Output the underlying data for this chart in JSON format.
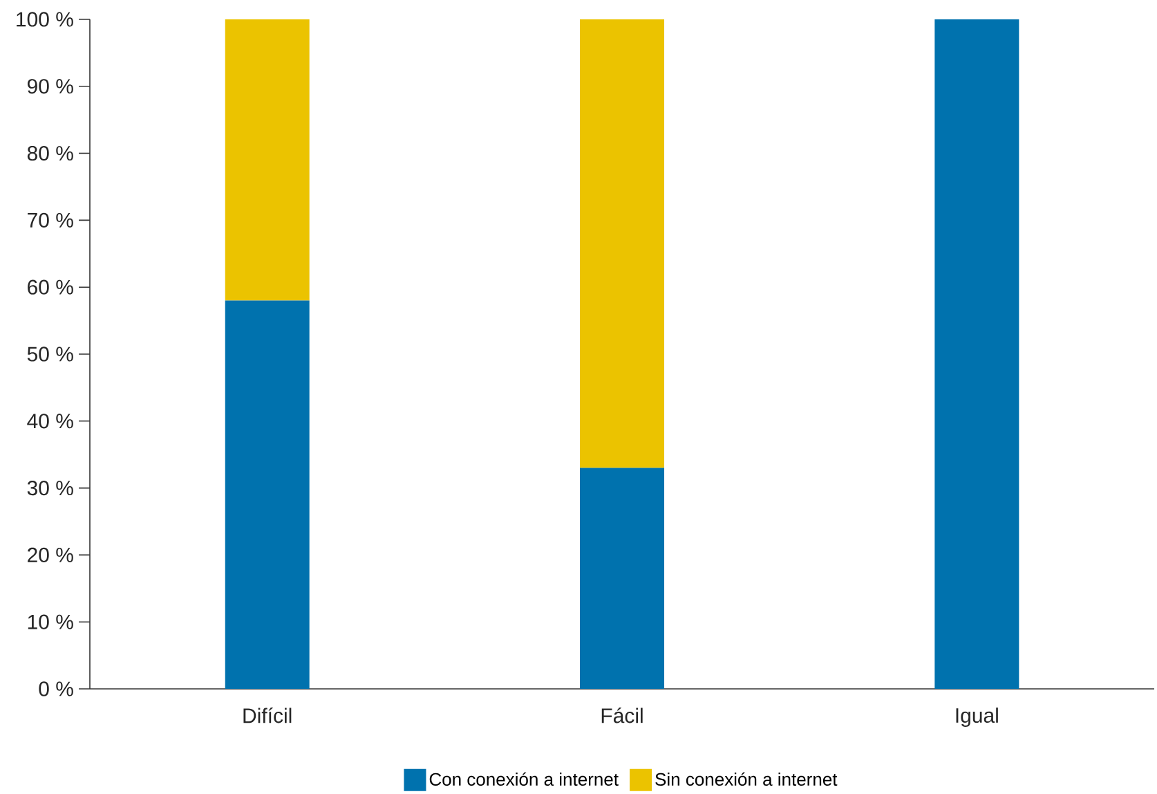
{
  "chart_data": {
    "type": "bar",
    "stacked": true,
    "categories": [
      "Difícil",
      "Fácil",
      "Igual"
    ],
    "series": [
      {
        "name": "Con conexión a internet",
        "color": "#0072ae",
        "values": [
          58,
          33,
          100
        ]
      },
      {
        "name": "Sin conexión a internet",
        "color": "#ebc300",
        "values": [
          42,
          67,
          0
        ]
      }
    ],
    "ylim": [
      0,
      100
    ],
    "yticks": [
      {
        "value": 0,
        "label": "0 %"
      },
      {
        "value": 10,
        "label": "10 %"
      },
      {
        "value": 20,
        "label": "20 %"
      },
      {
        "value": 30,
        "label": "30 %"
      },
      {
        "value": 40,
        "label": "40 %"
      },
      {
        "value": 50,
        "label": "50 %"
      },
      {
        "value": 60,
        "label": "60 %"
      },
      {
        "value": 70,
        "label": "70 %"
      },
      {
        "value": 80,
        "label": "80 %"
      },
      {
        "value": 90,
        "label": "90 %"
      },
      {
        "value": 100,
        "label": "100 %"
      }
    ],
    "grid": false,
    "legend": "bottom"
  }
}
